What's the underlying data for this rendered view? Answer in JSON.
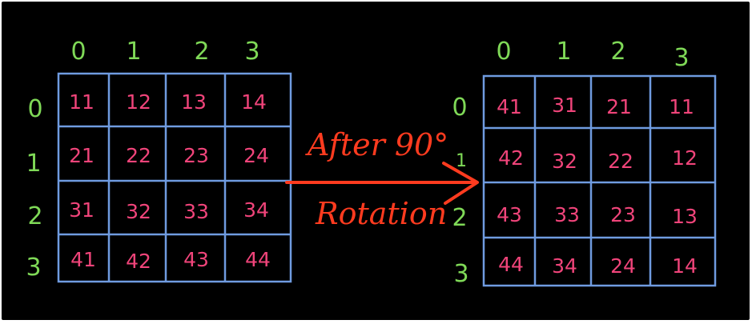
{
  "colors": {
    "background": "#000000",
    "grid_lines": "#6f9be0",
    "indices": "#7fd957",
    "values": "#f0447a",
    "arrow_and_caption": "#ff3b1f"
  },
  "original_matrix": {
    "column_indices": [
      "0",
      "1",
      "2",
      "3"
    ],
    "row_indices": [
      "0",
      "1",
      "2",
      "3"
    ],
    "rows": [
      [
        "11",
        "12",
        "13",
        "14"
      ],
      [
        "21",
        "22",
        "23",
        "24"
      ],
      [
        "31",
        "32",
        "33",
        "34"
      ],
      [
        "41",
        "42",
        "43",
        "44"
      ]
    ]
  },
  "rotated_matrix": {
    "column_indices": [
      "0",
      "1",
      "2",
      "3"
    ],
    "row_indices": [
      "0",
      "1",
      "2",
      "3"
    ],
    "rows": [
      [
        "41",
        "31",
        "21",
        "11"
      ],
      [
        "42",
        "32",
        "22",
        "12"
      ],
      [
        "43",
        "33",
        "23",
        "13"
      ],
      [
        "44",
        "34",
        "24",
        "14"
      ]
    ]
  },
  "transition": {
    "line1": "After 90°",
    "line2": "Rotation"
  }
}
